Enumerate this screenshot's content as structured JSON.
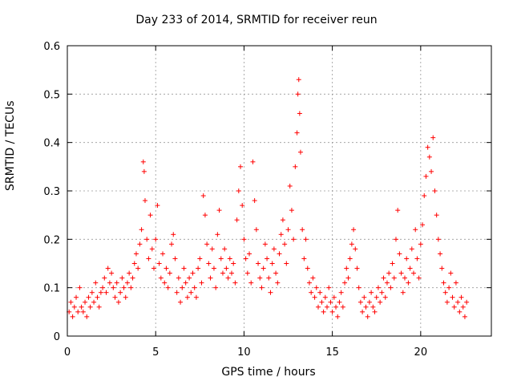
{
  "chart_data": {
    "type": "scatter",
    "title": "Day 233 of 2014, SRMTID for receiver reun",
    "xlabel": "GPS time / hours",
    "ylabel": "SRMTID / TECUs",
    "xlim": [
      0,
      24
    ],
    "ylim": [
      0,
      0.6
    ],
    "xticks": [
      0,
      5,
      10,
      15,
      20
    ],
    "xtick_labels": [
      "0",
      "5",
      "10",
      "15",
      "20"
    ],
    "yticks": [
      0,
      0.1,
      0.2,
      0.3,
      0.4,
      0.5,
      0.6
    ],
    "ytick_labels": [
      "0",
      "0.1",
      "0.2",
      "0.3",
      "0.4",
      "0.5",
      "0.6"
    ],
    "grid": true,
    "marker": "+",
    "marker_color": "#ff0000",
    "series": [
      {
        "name": "SRMTID",
        "points": [
          [
            0.1,
            0.05
          ],
          [
            0.2,
            0.07
          ],
          [
            0.3,
            0.04
          ],
          [
            0.4,
            0.06
          ],
          [
            0.5,
            0.08
          ],
          [
            0.6,
            0.05
          ],
          [
            0.7,
            0.1
          ],
          [
            0.8,
            0.06
          ],
          [
            0.9,
            0.05
          ],
          [
            1.0,
            0.07
          ],
          [
            1.1,
            0.04
          ],
          [
            1.2,
            0.08
          ],
          [
            1.3,
            0.06
          ],
          [
            1.4,
            0.09
          ],
          [
            1.5,
            0.07
          ],
          [
            1.6,
            0.11
          ],
          [
            1.7,
            0.08
          ],
          [
            1.8,
            0.06
          ],
          [
            1.9,
            0.09
          ],
          [
            2.0,
            0.1
          ],
          [
            2.1,
            0.12
          ],
          [
            2.2,
            0.09
          ],
          [
            2.3,
            0.14
          ],
          [
            2.4,
            0.11
          ],
          [
            2.5,
            0.13
          ],
          [
            2.6,
            0.1
          ],
          [
            2.7,
            0.08
          ],
          [
            2.8,
            0.11
          ],
          [
            2.9,
            0.07
          ],
          [
            3.0,
            0.09
          ],
          [
            3.1,
            0.12
          ],
          [
            3.2,
            0.1
          ],
          [
            3.3,
            0.08
          ],
          [
            3.4,
            0.11
          ],
          [
            3.5,
            0.13
          ],
          [
            3.6,
            0.1
          ],
          [
            3.7,
            0.12
          ],
          [
            3.8,
            0.15
          ],
          [
            3.9,
            0.17
          ],
          [
            4.0,
            0.14
          ],
          [
            4.1,
            0.19
          ],
          [
            4.2,
            0.22
          ],
          [
            4.3,
            0.36
          ],
          [
            4.35,
            0.34
          ],
          [
            4.4,
            0.28
          ],
          [
            4.5,
            0.2
          ],
          [
            4.6,
            0.16
          ],
          [
            4.7,
            0.25
          ],
          [
            4.8,
            0.18
          ],
          [
            4.9,
            0.14
          ],
          [
            5.0,
            0.2
          ],
          [
            5.1,
            0.27
          ],
          [
            5.2,
            0.15
          ],
          [
            5.3,
            0.12
          ],
          [
            5.4,
            0.17
          ],
          [
            5.5,
            0.11
          ],
          [
            5.6,
            0.14
          ],
          [
            5.7,
            0.1
          ],
          [
            5.8,
            0.13
          ],
          [
            5.9,
            0.19
          ],
          [
            6.0,
            0.21
          ],
          [
            6.1,
            0.16
          ],
          [
            6.2,
            0.09
          ],
          [
            6.3,
            0.12
          ],
          [
            6.4,
            0.07
          ],
          [
            6.5,
            0.1
          ],
          [
            6.6,
            0.14
          ],
          [
            6.7,
            0.11
          ],
          [
            6.8,
            0.08
          ],
          [
            6.9,
            0.12
          ],
          [
            7.0,
            0.09
          ],
          [
            7.1,
            0.13
          ],
          [
            7.2,
            0.1
          ],
          [
            7.3,
            0.08
          ],
          [
            7.4,
            0.14
          ],
          [
            7.5,
            0.16
          ],
          [
            7.6,
            0.11
          ],
          [
            7.7,
            0.29
          ],
          [
            7.8,
            0.25
          ],
          [
            7.9,
            0.19
          ],
          [
            8.0,
            0.15
          ],
          [
            8.1,
            0.12
          ],
          [
            8.2,
            0.18
          ],
          [
            8.3,
            0.14
          ],
          [
            8.4,
            0.1
          ],
          [
            8.5,
            0.21
          ],
          [
            8.6,
            0.26
          ],
          [
            8.7,
            0.16
          ],
          [
            8.8,
            0.13
          ],
          [
            8.9,
            0.18
          ],
          [
            9.0,
            0.14
          ],
          [
            9.1,
            0.12
          ],
          [
            9.2,
            0.16
          ],
          [
            9.3,
            0.13
          ],
          [
            9.4,
            0.15
          ],
          [
            9.5,
            0.11
          ],
          [
            9.6,
            0.24
          ],
          [
            9.7,
            0.3
          ],
          [
            9.8,
            0.35
          ],
          [
            9.9,
            0.27
          ],
          [
            10.0,
            0.2
          ],
          [
            10.1,
            0.16
          ],
          [
            10.2,
            0.13
          ],
          [
            10.3,
            0.17
          ],
          [
            10.4,
            0.11
          ],
          [
            10.5,
            0.36
          ],
          [
            10.6,
            0.28
          ],
          [
            10.7,
            0.22
          ],
          [
            10.8,
            0.15
          ],
          [
            10.9,
            0.12
          ],
          [
            11.0,
            0.1
          ],
          [
            11.1,
            0.14
          ],
          [
            11.2,
            0.19
          ],
          [
            11.3,
            0.16
          ],
          [
            11.4,
            0.12
          ],
          [
            11.5,
            0.09
          ],
          [
            11.6,
            0.15
          ],
          [
            11.7,
            0.18
          ],
          [
            11.8,
            0.13
          ],
          [
            11.9,
            0.11
          ],
          [
            12.0,
            0.17
          ],
          [
            12.1,
            0.21
          ],
          [
            12.2,
            0.24
          ],
          [
            12.3,
            0.19
          ],
          [
            12.4,
            0.15
          ],
          [
            12.5,
            0.22
          ],
          [
            12.6,
            0.31
          ],
          [
            12.7,
            0.26
          ],
          [
            12.8,
            0.2
          ],
          [
            12.9,
            0.35
          ],
          [
            13.0,
            0.42
          ],
          [
            13.05,
            0.5
          ],
          [
            13.1,
            0.53
          ],
          [
            13.15,
            0.46
          ],
          [
            13.2,
            0.38
          ],
          [
            13.3,
            0.22
          ],
          [
            13.4,
            0.16
          ],
          [
            13.5,
            0.2
          ],
          [
            13.6,
            0.14
          ],
          [
            13.7,
            0.11
          ],
          [
            13.8,
            0.09
          ],
          [
            13.9,
            0.12
          ],
          [
            14.0,
            0.08
          ],
          [
            14.1,
            0.1
          ],
          [
            14.2,
            0.06
          ],
          [
            14.3,
            0.09
          ],
          [
            14.4,
            0.07
          ],
          [
            14.5,
            0.05
          ],
          [
            14.6,
            0.08
          ],
          [
            14.7,
            0.06
          ],
          [
            14.8,
            0.1
          ],
          [
            14.9,
            0.07
          ],
          [
            15.0,
            0.05
          ],
          [
            15.1,
            0.08
          ],
          [
            15.2,
            0.06
          ],
          [
            15.3,
            0.04
          ],
          [
            15.4,
            0.07
          ],
          [
            15.5,
            0.09
          ],
          [
            15.6,
            0.06
          ],
          [
            15.7,
            0.11
          ],
          [
            15.8,
            0.14
          ],
          [
            15.9,
            0.12
          ],
          [
            16.0,
            0.16
          ],
          [
            16.1,
            0.19
          ],
          [
            16.2,
            0.22
          ],
          [
            16.3,
            0.18
          ],
          [
            16.4,
            0.14
          ],
          [
            16.5,
            0.1
          ],
          [
            16.6,
            0.07
          ],
          [
            16.7,
            0.05
          ],
          [
            16.8,
            0.08
          ],
          [
            16.9,
            0.06
          ],
          [
            17.0,
            0.04
          ],
          [
            17.1,
            0.07
          ],
          [
            17.2,
            0.09
          ],
          [
            17.3,
            0.06
          ],
          [
            17.4,
            0.05
          ],
          [
            17.5,
            0.08
          ],
          [
            17.6,
            0.1
          ],
          [
            17.7,
            0.07
          ],
          [
            17.8,
            0.09
          ],
          [
            17.9,
            0.12
          ],
          [
            18.0,
            0.08
          ],
          [
            18.1,
            0.11
          ],
          [
            18.2,
            0.13
          ],
          [
            18.3,
            0.1
          ],
          [
            18.4,
            0.15
          ],
          [
            18.5,
            0.12
          ],
          [
            18.6,
            0.2
          ],
          [
            18.7,
            0.26
          ],
          [
            18.8,
            0.17
          ],
          [
            18.9,
            0.13
          ],
          [
            19.0,
            0.09
          ],
          [
            19.1,
            0.12
          ],
          [
            19.2,
            0.16
          ],
          [
            19.3,
            0.11
          ],
          [
            19.4,
            0.14
          ],
          [
            19.5,
            0.18
          ],
          [
            19.6,
            0.13
          ],
          [
            19.7,
            0.22
          ],
          [
            19.8,
            0.16
          ],
          [
            19.9,
            0.12
          ],
          [
            20.0,
            0.19
          ],
          [
            20.1,
            0.23
          ],
          [
            20.2,
            0.29
          ],
          [
            20.3,
            0.33
          ],
          [
            20.4,
            0.39
          ],
          [
            20.5,
            0.37
          ],
          [
            20.6,
            0.34
          ],
          [
            20.7,
            0.41
          ],
          [
            20.8,
            0.3
          ],
          [
            20.9,
            0.25
          ],
          [
            21.0,
            0.2
          ],
          [
            21.1,
            0.17
          ],
          [
            21.2,
            0.14
          ],
          [
            21.3,
            0.11
          ],
          [
            21.4,
            0.09
          ],
          [
            21.5,
            0.07
          ],
          [
            21.6,
            0.1
          ],
          [
            21.7,
            0.13
          ],
          [
            21.8,
            0.08
          ],
          [
            21.9,
            0.06
          ],
          [
            22.0,
            0.11
          ],
          [
            22.1,
            0.07
          ],
          [
            22.2,
            0.05
          ],
          [
            22.3,
            0.08
          ],
          [
            22.4,
            0.06
          ],
          [
            22.5,
            0.04
          ],
          [
            22.6,
            0.07
          ]
        ]
      }
    ]
  }
}
